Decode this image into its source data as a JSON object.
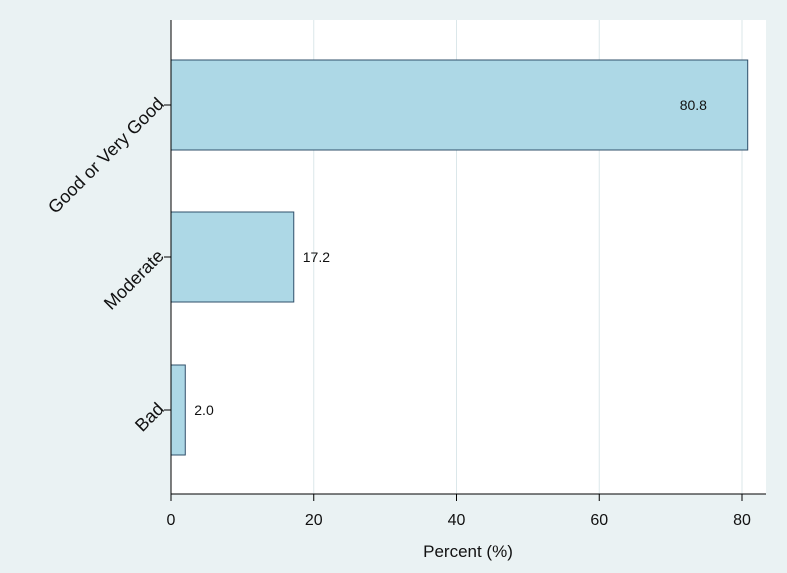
{
  "chart_data": {
    "type": "bar",
    "orientation": "horizontal",
    "categories": [
      "Good or Very Good",
      "Moderate",
      "Bad"
    ],
    "values": [
      80.8,
      17.2,
      2.0
    ],
    "value_labels": [
      "80.8",
      "17.2",
      "2.0"
    ],
    "xlabel": "Percent (%)",
    "ylabel": "",
    "xlim": [
      0,
      83.3
    ],
    "xticks": [
      0,
      20,
      40,
      60,
      80
    ],
    "grid": true,
    "colors": {
      "bar_fill": "#add8e6",
      "bar_stroke": "#2f4f6a",
      "plot_bg": "#ffffff",
      "page_bg": "#eaf2f3"
    }
  }
}
